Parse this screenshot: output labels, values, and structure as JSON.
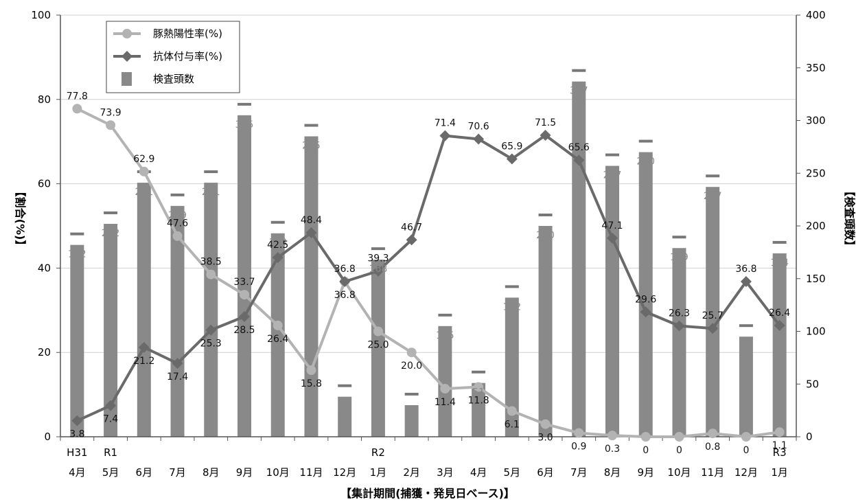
{
  "chart_data": {
    "type": "bar+line",
    "xlabel": "【集計期間(捕獲・発見日ベース)】",
    "ylabel_left": "【割合(%)】",
    "ylabel_right": "【検査頭数】",
    "ylim_left": [
      0,
      100
    ],
    "ylim_right": [
      0,
      400
    ],
    "yticks_left": [
      0,
      20,
      40,
      60,
      80,
      100
    ],
    "yticks_right": [
      0,
      50,
      100,
      150,
      200,
      250,
      300,
      350,
      400
    ],
    "grid": true,
    "legend_position": "top-left",
    "categories": [
      {
        "top": "H31",
        "bottom": "4月"
      },
      {
        "top": "R1",
        "bottom": "5月"
      },
      {
        "top": "",
        "bottom": "6月"
      },
      {
        "top": "",
        "bottom": "7月"
      },
      {
        "top": "",
        "bottom": "8月"
      },
      {
        "top": "",
        "bottom": "9月"
      },
      {
        "top": "",
        "bottom": "10月"
      },
      {
        "top": "",
        "bottom": "11月"
      },
      {
        "top": "",
        "bottom": "12月"
      },
      {
        "top": "R2",
        "bottom": "1月"
      },
      {
        "top": "",
        "bottom": "2月"
      },
      {
        "top": "",
        "bottom": "3月"
      },
      {
        "top": "",
        "bottom": "4月"
      },
      {
        "top": "",
        "bottom": "5月"
      },
      {
        "top": "",
        "bottom": "6月"
      },
      {
        "top": "",
        "bottom": "7月"
      },
      {
        "top": "",
        "bottom": "8月"
      },
      {
        "top": "",
        "bottom": "9月"
      },
      {
        "top": "",
        "bottom": "10月"
      },
      {
        "top": "",
        "bottom": "11月"
      },
      {
        "top": "",
        "bottom": "12月"
      },
      {
        "top": "R3",
        "bottom": "1月"
      }
    ],
    "series": [
      {
        "name": "豚熱陽性率(%)",
        "type": "line",
        "axis": "left",
        "marker": "circle",
        "color": "#b3b3b3",
        "values": [
          77.8,
          73.9,
          62.9,
          47.6,
          38.5,
          33.7,
          26.4,
          15.8,
          36.8,
          25.0,
          20.0,
          11.4,
          11.8,
          6.1,
          3.0,
          0.9,
          0.3,
          0,
          0,
          0.8,
          0,
          1.1
        ],
        "labels": [
          "77.8",
          "73.9",
          "62.9",
          "47.6",
          "38.5",
          "33.7",
          "26.4",
          "15.8",
          "36.8",
          "25.0",
          "20.0",
          "11.4",
          "11.8",
          "6.1",
          "3.0",
          "0.9",
          "0.3",
          "0",
          "0",
          "0.8",
          "0",
          "1.1"
        ]
      },
      {
        "name": "抗体付与率(%)",
        "type": "line",
        "axis": "left",
        "marker": "diamond",
        "color": "#6a6a6a",
        "values": [
          3.8,
          7.4,
          21.2,
          17.4,
          25.3,
          28.5,
          42.5,
          48.4,
          36.8,
          39.3,
          46.7,
          71.4,
          70.6,
          65.9,
          71.5,
          65.6,
          47.1,
          29.6,
          26.3,
          25.7,
          36.8,
          26.4
        ],
        "labels": [
          "3.8",
          "7.4",
          "21.2",
          "17.4",
          "25.3",
          "28.5",
          "42.5",
          "48.4",
          "36.8",
          "39.3",
          "46.7",
          "71.4",
          "70.6",
          "65.9",
          "71.5",
          "65.6",
          "47.1",
          "29.6",
          "26.3",
          "25.7",
          "36.8",
          "26.4"
        ]
      },
      {
        "name": "検査頭数",
        "type": "bar",
        "axis": "right",
        "color": "#898989",
        "values": [
          182,
          202,
          241,
          219,
          241,
          305,
          193,
          285,
          38,
          168,
          30,
          105,
          51,
          132,
          200,
          337,
          257,
          270,
          179,
          237,
          95,
          174
        ],
        "labels": [
          "182",
          "202",
          "241",
          "219",
          "241",
          "305",
          "193",
          "285",
          "38",
          "168",
          "30",
          "105",
          "51",
          "132",
          "200",
          "337",
          "257",
          "270",
          "179",
          "237",
          "95",
          "174"
        ]
      }
    ],
    "colors": {
      "bar": "#898989",
      "positive_line": "#b3b3b3",
      "antibody_line": "#6a6a6a",
      "grid": "#d0d0d0",
      "axis": "#555555"
    }
  }
}
